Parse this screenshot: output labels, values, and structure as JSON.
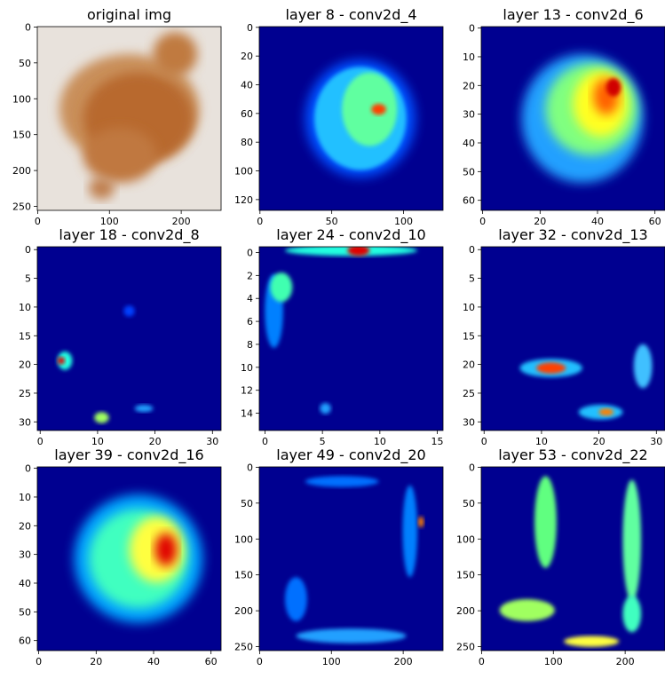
{
  "chart_data": [
    {
      "type": "image",
      "title": "original img",
      "xlim": [
        -0.5,
        255.5
      ],
      "ylim": [
        255.5,
        -0.5
      ],
      "xticks": [
        0,
        100,
        200
      ],
      "yticks": [
        0,
        50,
        100,
        150,
        200,
        250
      ]
    },
    {
      "type": "image",
      "title": "layer 8 - conv2d_4",
      "xlim": [
        -0.5,
        127.5
      ],
      "ylim": [
        127.5,
        -0.5
      ],
      "xticks": [
        0,
        50,
        100
      ],
      "yticks": [
        0,
        20,
        40,
        60,
        80,
        100,
        120
      ]
    },
    {
      "type": "image",
      "title": "layer 13 - conv2d_6",
      "xlim": [
        -0.5,
        63.5
      ],
      "ylim": [
        63.5,
        -0.5
      ],
      "xticks": [
        0,
        20,
        40,
        60
      ],
      "yticks": [
        0,
        10,
        20,
        30,
        40,
        50,
        60
      ]
    },
    {
      "type": "image",
      "title": "layer 18 - conv2d_8",
      "xlim": [
        -0.5,
        31.5
      ],
      "ylim": [
        31.5,
        -0.5
      ],
      "xticks": [
        0,
        10,
        20,
        30
      ],
      "yticks": [
        0,
        5,
        10,
        15,
        20,
        25,
        30
      ]
    },
    {
      "type": "image",
      "title": "layer 24 - conv2d_10",
      "xlim": [
        -0.5,
        15.5
      ],
      "ylim": [
        15.5,
        -0.5
      ],
      "xticks": [
        0,
        5,
        10,
        15
      ],
      "yticks": [
        0,
        2,
        4,
        6,
        8,
        10,
        12,
        14
      ]
    },
    {
      "type": "image",
      "title": "layer 32 - conv2d_13",
      "xlim": [
        -0.5,
        31.5
      ],
      "ylim": [
        31.5,
        -0.5
      ],
      "xticks": [
        0,
        10,
        20,
        30
      ],
      "yticks": [
        0,
        5,
        10,
        15,
        20,
        25,
        30
      ]
    },
    {
      "type": "image",
      "title": "layer 39 - conv2d_16",
      "xlim": [
        -0.5,
        63.5
      ],
      "ylim": [
        63.5,
        -0.5
      ],
      "xticks": [
        0,
        20,
        40,
        60
      ],
      "yticks": [
        0,
        10,
        20,
        30,
        40,
        50,
        60
      ]
    },
    {
      "type": "image",
      "title": "layer 49 - conv2d_20",
      "xlim": [
        -0.5,
        255.5
      ],
      "ylim": [
        255.5,
        -0.5
      ],
      "xticks": [
        0,
        100,
        200
      ],
      "yticks": [
        0,
        50,
        100,
        150,
        200,
        250
      ]
    },
    {
      "type": "image",
      "title": "layer 53 - conv2d_22",
      "xlim": [
        -0.5,
        255.5
      ],
      "ylim": [
        255.5,
        -0.5
      ],
      "xticks": [
        0,
        100,
        200
      ],
      "yticks": [
        0,
        50,
        100,
        150,
        200,
        250
      ]
    }
  ]
}
